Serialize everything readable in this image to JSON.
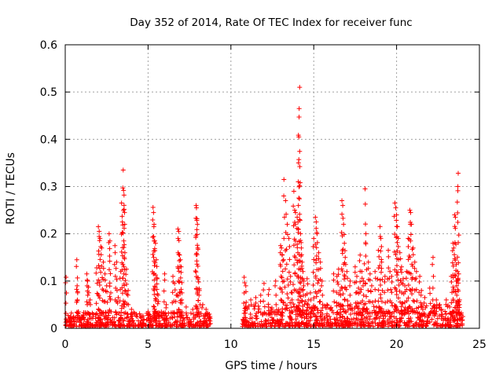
{
  "chart_data": {
    "type": "scatter",
    "title": "Day 352 of 2014, Rate Of TEC Index for receiver func",
    "xlabel": "GPS time / hours",
    "ylabel": "ROTI / TECUs",
    "xlim": [
      0,
      25
    ],
    "ylim": [
      0,
      0.6
    ],
    "xticks": [
      0,
      5,
      10,
      15,
      20,
      25
    ],
    "xtick_labels": [
      "0",
      "5",
      "10",
      "15",
      "20",
      "25"
    ],
    "yticks": [
      0,
      0.1,
      0.2,
      0.3,
      0.4,
      0.5,
      0.6
    ],
    "ytick_labels": [
      "0",
      "0.1",
      "0.2",
      "0.3",
      "0.4",
      "0.5",
      "0.6"
    ],
    "grid": true,
    "marker": "plus",
    "marker_color": "#ff0000",
    "data_gap_hours": [
      8.8,
      10.7
    ],
    "series": [
      {
        "name": "ROTI",
        "points": [
          [
            0.05,
            0.108
          ],
          [
            0.1,
            0.016
          ],
          [
            0.3,
            0.014
          ],
          [
            0.5,
            0.02
          ],
          [
            0.7,
            0.145
          ],
          [
            0.72,
            0.09
          ],
          [
            0.75,
            0.075
          ],
          [
            0.8,
            0.035
          ],
          [
            1.0,
            0.025
          ],
          [
            1.3,
            0.115
          ],
          [
            1.35,
            0.1
          ],
          [
            1.4,
            0.087
          ],
          [
            1.5,
            0.06
          ],
          [
            1.7,
            0.03
          ],
          [
            1.9,
            0.128
          ],
          [
            2.0,
            0.215
          ],
          [
            2.05,
            0.205
          ],
          [
            2.1,
            0.19
          ],
          [
            2.2,
            0.17
          ],
          [
            2.3,
            0.14
          ],
          [
            2.4,
            0.115
          ],
          [
            2.5,
            0.09
          ],
          [
            2.65,
            0.2
          ],
          [
            2.7,
            0.185
          ],
          [
            2.75,
            0.075
          ],
          [
            3.0,
            0.175
          ],
          [
            3.1,
            0.14
          ],
          [
            3.2,
            0.065
          ],
          [
            3.35,
            0.12
          ],
          [
            3.4,
            0.265
          ],
          [
            3.45,
            0.225
          ],
          [
            3.5,
            0.335
          ],
          [
            3.52,
            0.292
          ],
          [
            3.55,
            0.282
          ],
          [
            3.58,
            0.245
          ],
          [
            3.6,
            0.16
          ],
          [
            3.7,
            0.125
          ],
          [
            3.8,
            0.08
          ],
          [
            4.0,
            0.04
          ],
          [
            4.3,
            0.03
          ],
          [
            4.6,
            0.025
          ],
          [
            5.0,
            0.035
          ],
          [
            5.3,
            0.256
          ],
          [
            5.33,
            0.245
          ],
          [
            5.35,
            0.215
          ],
          [
            5.4,
            0.185
          ],
          [
            5.45,
            0.18
          ],
          [
            5.5,
            0.145
          ],
          [
            5.55,
            0.105
          ],
          [
            5.6,
            0.07
          ],
          [
            5.8,
            0.035
          ],
          [
            6.0,
            0.115
          ],
          [
            6.1,
            0.05
          ],
          [
            6.5,
            0.11
          ],
          [
            6.6,
            0.095
          ],
          [
            6.7,
            0.07
          ],
          [
            6.8,
            0.21
          ],
          [
            6.85,
            0.205
          ],
          [
            6.9,
            0.155
          ],
          [
            6.95,
            0.145
          ],
          [
            7.0,
            0.13
          ],
          [
            7.05,
            0.075
          ],
          [
            7.3,
            0.045
          ],
          [
            7.7,
            0.04
          ],
          [
            7.9,
            0.26
          ],
          [
            7.92,
            0.255
          ],
          [
            7.95,
            0.232
          ],
          [
            7.98,
            0.22
          ],
          [
            8.0,
            0.17
          ],
          [
            8.05,
            0.098
          ],
          [
            8.1,
            0.08
          ],
          [
            8.3,
            0.05
          ],
          [
            8.5,
            0.04
          ],
          [
            8.7,
            0.03
          ],
          [
            10.8,
            0.108
          ],
          [
            10.9,
            0.09
          ],
          [
            11.2,
            0.06
          ],
          [
            11.5,
            0.065
          ],
          [
            11.8,
            0.07
          ],
          [
            12.0,
            0.095
          ],
          [
            12.3,
            0.082
          ],
          [
            12.7,
            0.1
          ],
          [
            13.0,
            0.175
          ],
          [
            13.05,
            0.17
          ],
          [
            13.1,
            0.155
          ],
          [
            13.2,
            0.315
          ],
          [
            13.3,
            0.27
          ],
          [
            13.4,
            0.22
          ],
          [
            13.5,
            0.19
          ],
          [
            13.6,
            0.11
          ],
          [
            13.7,
            0.075
          ],
          [
            13.8,
            0.29
          ],
          [
            13.85,
            0.25
          ],
          [
            13.9,
            0.245
          ],
          [
            14.0,
            0.235
          ],
          [
            14.05,
            0.225
          ],
          [
            14.08,
            0.35
          ],
          [
            14.1,
            0.405
          ],
          [
            14.12,
            0.465
          ],
          [
            14.15,
            0.51
          ],
          [
            14.18,
            0.308
          ],
          [
            14.2,
            0.2
          ],
          [
            14.25,
            0.17
          ],
          [
            14.3,
            0.14
          ],
          [
            14.35,
            0.12
          ],
          [
            14.4,
            0.1
          ],
          [
            14.5,
            0.07
          ],
          [
            14.6,
            0.105
          ],
          [
            14.7,
            0.06
          ],
          [
            14.8,
            0.075
          ],
          [
            15.0,
            0.19
          ],
          [
            15.1,
            0.235
          ],
          [
            15.15,
            0.225
          ],
          [
            15.2,
            0.2
          ],
          [
            15.3,
            0.16
          ],
          [
            15.4,
            0.14
          ],
          [
            15.5,
            0.1
          ],
          [
            15.8,
            0.05
          ],
          [
            16.2,
            0.115
          ],
          [
            16.4,
            0.11
          ],
          [
            16.5,
            0.125
          ],
          [
            16.6,
            0.08
          ],
          [
            16.7,
            0.27
          ],
          [
            16.75,
            0.26
          ],
          [
            16.8,
            0.22
          ],
          [
            16.85,
            0.18
          ],
          [
            16.9,
            0.15
          ],
          [
            17.0,
            0.12
          ],
          [
            17.2,
            0.1
          ],
          [
            17.5,
            0.13
          ],
          [
            17.6,
            0.11
          ],
          [
            17.7,
            0.085
          ],
          [
            17.8,
            0.155
          ],
          [
            17.9,
            0.12
          ],
          [
            18.0,
            0.1
          ],
          [
            18.1,
            0.295
          ],
          [
            18.15,
            0.2
          ],
          [
            18.3,
            0.14
          ],
          [
            18.4,
            0.115
          ],
          [
            18.5,
            0.09
          ],
          [
            18.7,
            0.12
          ],
          [
            18.9,
            0.165
          ],
          [
            19.0,
            0.215
          ],
          [
            19.05,
            0.19
          ],
          [
            19.1,
            0.14
          ],
          [
            19.3,
            0.11
          ],
          [
            19.5,
            0.165
          ],
          [
            19.6,
            0.12
          ],
          [
            19.7,
            0.11
          ],
          [
            19.9,
            0.265
          ],
          [
            19.95,
            0.255
          ],
          [
            20.0,
            0.24
          ],
          [
            20.05,
            0.215
          ],
          [
            20.1,
            0.19
          ],
          [
            20.2,
            0.16
          ],
          [
            20.3,
            0.13
          ],
          [
            20.4,
            0.105
          ],
          [
            20.5,
            0.09
          ],
          [
            20.6,
            0.12
          ],
          [
            20.7,
            0.19
          ],
          [
            20.8,
            0.25
          ],
          [
            20.85,
            0.245
          ],
          [
            20.9,
            0.22
          ],
          [
            21.0,
            0.17
          ],
          [
            21.1,
            0.14
          ],
          [
            21.2,
            0.12
          ],
          [
            21.4,
            0.11
          ],
          [
            21.5,
            0.08
          ],
          [
            21.7,
            0.065
          ],
          [
            22.0,
            0.085
          ],
          [
            22.2,
            0.15
          ],
          [
            22.4,
            0.06
          ],
          [
            22.6,
            0.05
          ],
          [
            23.0,
            0.06
          ],
          [
            23.2,
            0.045
          ],
          [
            23.3,
            0.11
          ],
          [
            23.4,
            0.18
          ],
          [
            23.45,
            0.17
          ],
          [
            23.5,
            0.24
          ],
          [
            23.55,
            0.235
          ],
          [
            23.6,
            0.135
          ],
          [
            23.65,
            0.1
          ],
          [
            23.68,
            0.12
          ],
          [
            23.7,
            0.3
          ],
          [
            23.72,
            0.328
          ],
          [
            23.75,
            0.115
          ],
          [
            23.8,
            0.06
          ]
        ],
        "baseline_band": [
          {
            "x_start": 0.0,
            "x_end": 8.8,
            "y_min": 0.0,
            "y_max": 0.03
          },
          {
            "x_start": 10.7,
            "x_end": 24.0,
            "y_min": 0.0,
            "y_max": 0.045
          }
        ]
      }
    ]
  }
}
